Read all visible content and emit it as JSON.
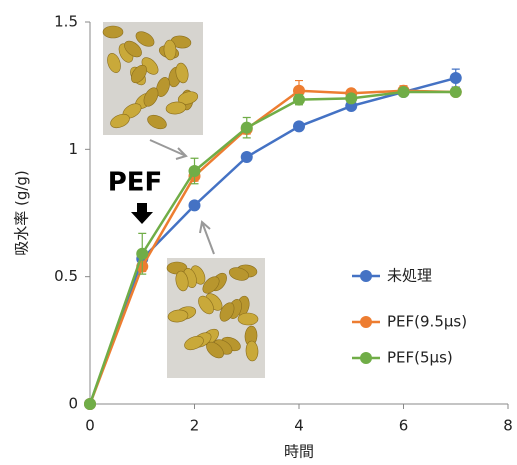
{
  "chart_data": {
    "type": "line",
    "x_label": "時間",
    "y_label": "吸水率 (g/g)",
    "annotation": "PEF",
    "x": [
      0,
      1,
      2,
      3,
      4,
      5,
      6,
      7
    ],
    "series": [
      {
        "name": "未処理",
        "color": "#4472c4",
        "values": [
          0,
          0.57,
          0.78,
          0.97,
          1.09,
          1.17,
          1.225,
          1.28
        ],
        "errors": [
          0,
          0.02,
          0.01,
          0.01,
          0.01,
          0.01,
          0.01,
          0.035
        ]
      },
      {
        "name": "PEF(9.5μs)",
        "color": "#ed7d31",
        "values": [
          0,
          0.54,
          0.895,
          1.08,
          1.23,
          1.22,
          1.23,
          1.225
        ],
        "errors": [
          0,
          0.02,
          0.02,
          0.02,
          0.04,
          0.01,
          0.02,
          0.01
        ]
      },
      {
        "name": "PEF(5μs)",
        "color": "#70ad47",
        "values": [
          0,
          0.59,
          0.915,
          1.085,
          1.195,
          1.2,
          1.225,
          1.225
        ],
        "errors": [
          0,
          0.08,
          0.05,
          0.04,
          0.02,
          0.01,
          0.01,
          0.01
        ]
      }
    ],
    "xlim": [
      0,
      8
    ],
    "xticks": [
      0,
      2,
      4,
      6,
      8
    ],
    "ylim": [
      0,
      1.5
    ],
    "yticks": [
      0,
      0.5,
      1,
      1.5
    ],
    "grid": false,
    "legend": "right"
  }
}
